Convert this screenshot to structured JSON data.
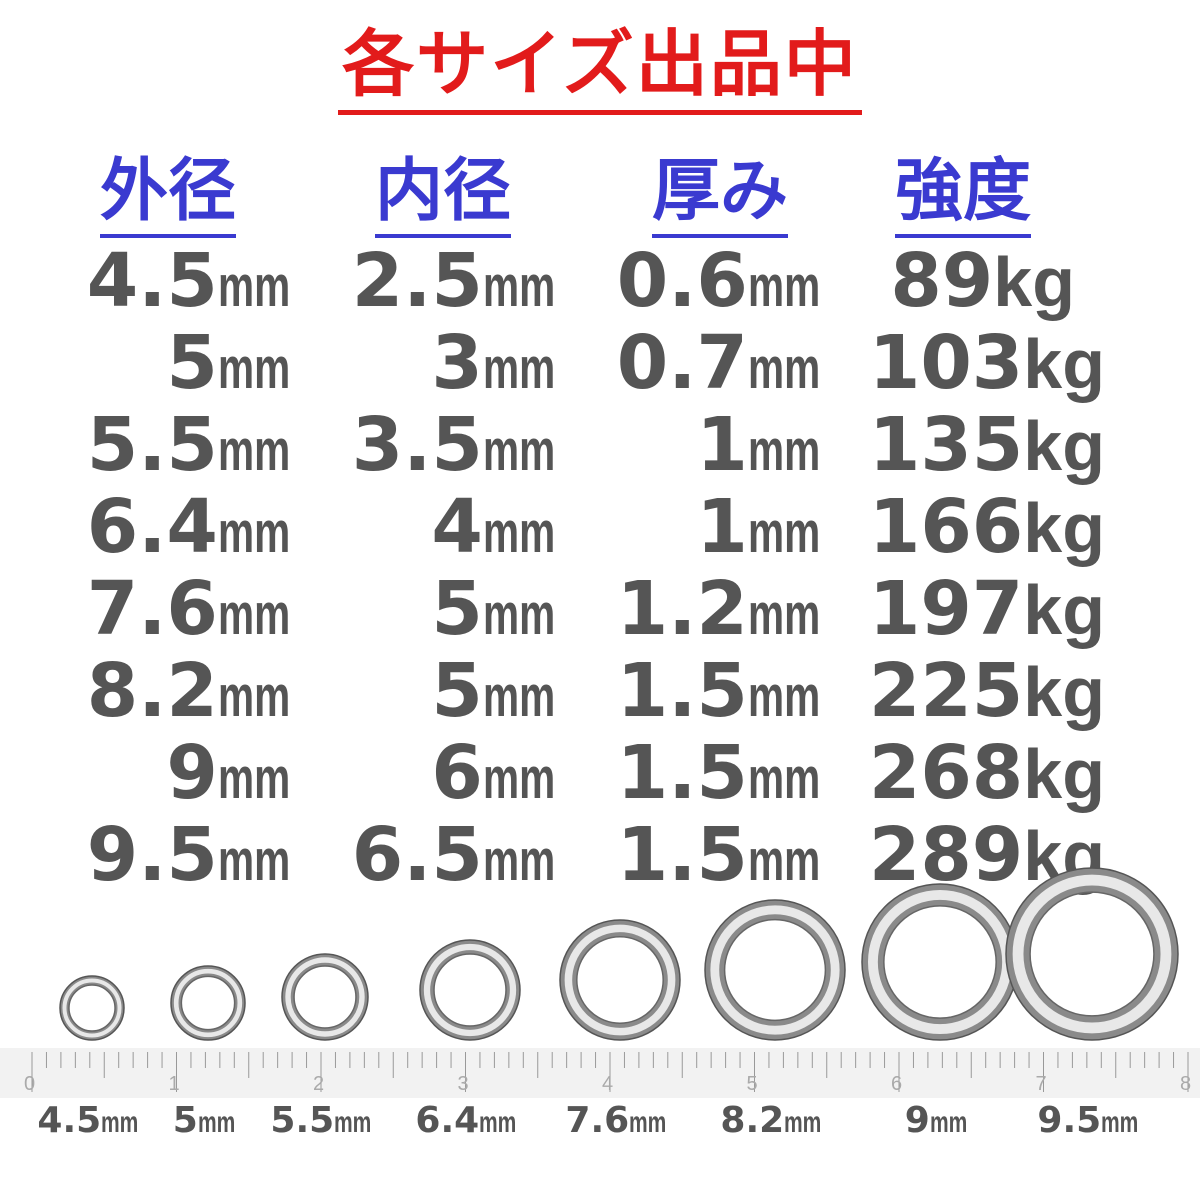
{
  "title": "各サイズ出品中",
  "headers": [
    "外径",
    "内径",
    "厚み",
    "強度"
  ],
  "unit_mm": "mm",
  "unit_kg": "kg",
  "rows": [
    [
      "4.5",
      "2.5",
      "0.6",
      "89"
    ],
    [
      "5",
      "3",
      "0.7",
      "103"
    ],
    [
      "5.5",
      "3.5",
      "1",
      "135"
    ],
    [
      "6.4",
      "4",
      "1",
      "166"
    ],
    [
      "7.6",
      "5",
      "1.2",
      "197"
    ],
    [
      "8.2",
      "5",
      "1.5",
      "225"
    ],
    [
      "9",
      "6",
      "1.5",
      "268"
    ],
    [
      "9.5",
      "6.5",
      "1.5",
      "289"
    ]
  ],
  "ruler_labels": [
    "0",
    "1",
    "2",
    "3",
    "4",
    "5",
    "6",
    "7",
    "8"
  ],
  "ring_labels": [
    "4.5",
    "5",
    "5.5",
    "6.4",
    "7.6",
    "8.2",
    "9",
    "9.5"
  ],
  "colors": {
    "title": "#e21b1b",
    "header": "#3a3ad0",
    "text": "#555555"
  }
}
